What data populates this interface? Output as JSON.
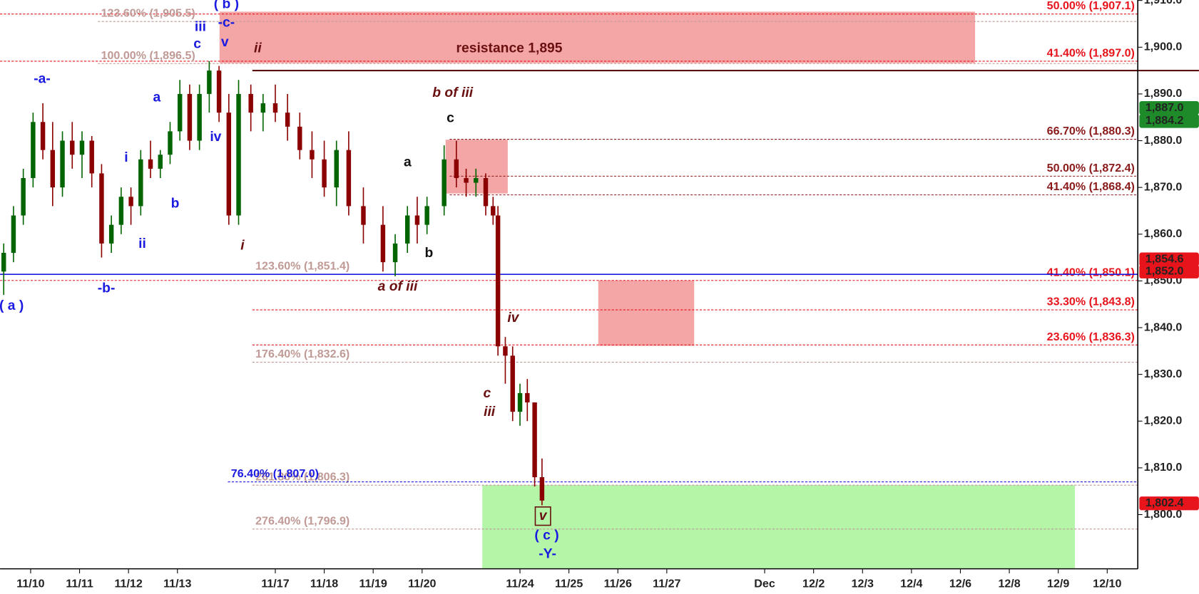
{
  "chart_data": {
    "type": "candlestick",
    "xlim": [
      -0.625,
      22.625
    ],
    "ylim": [
      1788.4,
      1910.1
    ],
    "xticks": [
      {
        "value": 0,
        "label": "11/10"
      },
      {
        "value": 1,
        "label": "11/11"
      },
      {
        "value": 2,
        "label": "11/12"
      },
      {
        "value": 3,
        "label": "11/13"
      },
      {
        "value": 5,
        "label": "11/17"
      },
      {
        "value": 6,
        "label": "11/18"
      },
      {
        "value": 7,
        "label": "11/19"
      },
      {
        "value": 8,
        "label": "11/20"
      },
      {
        "value": 10,
        "label": "11/24"
      },
      {
        "value": 11,
        "label": "11/25"
      },
      {
        "value": 12,
        "label": "11/26"
      },
      {
        "value": 13,
        "label": "11/27"
      },
      {
        "value": 15,
        "label": "Dec"
      },
      {
        "value": 16,
        "label": "12/2"
      },
      {
        "value": 17,
        "label": "12/3"
      },
      {
        "value": 18,
        "label": "12/4"
      },
      {
        "value": 19,
        "label": "12/6"
      },
      {
        "value": 20,
        "label": "12/8"
      },
      {
        "value": 21,
        "label": "12/9"
      },
      {
        "value": 22,
        "label": "12/10"
      }
    ],
    "yticks": [
      {
        "value": 1800,
        "label": "1,800.0"
      },
      {
        "value": 1810,
        "label": "1,810.0"
      },
      {
        "value": 1820,
        "label": "1,820.0"
      },
      {
        "value": 1830,
        "label": "1,830.0"
      },
      {
        "value": 1840,
        "label": "1,840.0"
      },
      {
        "value": 1850,
        "label": "1,850.0"
      },
      {
        "value": 1860,
        "label": "1,860.0"
      },
      {
        "value": 1870,
        "label": "1,870.0"
      },
      {
        "value": 1880,
        "label": "1,880.0"
      },
      {
        "value": 1890,
        "label": "1,890.0"
      },
      {
        "value": 1900,
        "label": "1,900.0"
      },
      {
        "value": 1910,
        "label": "1,910.0"
      }
    ],
    "up_color": "#006400",
    "down_color": "#8b0000",
    "x": [
      -0.55,
      -0.35,
      -0.15,
      0.05,
      0.25,
      0.45,
      0.65,
      0.85,
      1.05,
      1.25,
      1.45,
      1.65,
      1.85,
      2.05,
      2.25,
      2.45,
      2.65,
      2.85,
      3.05,
      3.25,
      3.45,
      3.65,
      3.85,
      4.05,
      4.25,
      4.5,
      4.75,
      5.0,
      5.25,
      5.5,
      5.75,
      6.0,
      6.25,
      6.5,
      6.8,
      7.2,
      7.45,
      7.7,
      7.9,
      8.1,
      8.45,
      8.7,
      8.9,
      9.1,
      9.3,
      9.45,
      9.55,
      9.7,
      9.85,
      10.0,
      10.15,
      10.3,
      10.45
    ],
    "open": [
      1852,
      1856,
      1864,
      1872,
      1884,
      1878,
      1870,
      1880,
      1877,
      1880,
      1873,
      1858,
      1862,
      1868,
      1866,
      1876,
      1874,
      1877,
      1882,
      1890,
      1880,
      1890,
      1895,
      1886,
      1864,
      1890,
      1886,
      1888,
      1886,
      1883,
      1878,
      1876,
      1870,
      1878,
      1866,
      1862,
      1854,
      1858,
      1864,
      1862,
      1866,
      1876,
      1872,
      1871,
      1872,
      1866,
      1864,
      1836,
      1834,
      1822,
      1826,
      1824,
      1808
    ],
    "high": [
      1858,
      1866,
      1874,
      1886,
      1888,
      1884,
      1882,
      1884,
      1882,
      1881,
      1875,
      1864,
      1870,
      1870,
      1878,
      1880,
      1878,
      1884,
      1893,
      1892,
      1892,
      1897,
      1896,
      1890,
      1893,
      1892,
      1890,
      1892,
      1890,
      1886,
      1882,
      1880,
      1880,
      1882,
      1870,
      1866,
      1860,
      1866,
      1868,
      1868,
      1879,
      1880,
      1874,
      1874,
      1873,
      1868,
      1866,
      1838,
      1836,
      1828,
      1829,
      1824,
      1812
    ],
    "low": [
      1847,
      1854,
      1862,
      1870,
      1876,
      1866,
      1868,
      1874,
      1872,
      1870,
      1855,
      1856,
      1860,
      1862,
      1864,
      1872,
      1872,
      1875,
      1880,
      1878,
      1878,
      1886,
      1884,
      1862,
      1862,
      1882,
      1882,
      1884,
      1880,
      1876,
      1872,
      1868,
      1866,
      1864,
      1858,
      1852,
      1851,
      1856,
      1858,
      1860,
      1864,
      1870,
      1868,
      1868,
      1864,
      1862,
      1834,
      1828,
      1820,
      1819,
      1820,
      1806,
      1802
    ],
    "close": [
      1856,
      1864,
      1872,
      1884,
      1878,
      1870,
      1880,
      1877,
      1880,
      1873,
      1858,
      1862,
      1868,
      1866,
      1876,
      1874,
      1877,
      1882,
      1890,
      1880,
      1890,
      1895,
      1886,
      1864,
      1890,
      1886,
      1888,
      1886,
      1883,
      1878,
      1876,
      1870,
      1878,
      1866,
      1862,
      1854,
      1858,
      1864,
      1862,
      1866,
      1876,
      1872,
      1871,
      1872,
      1866,
      1864,
      1836,
      1834,
      1822,
      1826,
      1824,
      1808,
      1803
    ],
    "zones": [
      {
        "x": [
          3.86,
          19.3
        ],
        "y": [
          1896.6,
          1907.6
        ],
        "color": "#f4a6a6"
      },
      {
        "x": [
          8.48,
          9.75
        ],
        "y": [
          1868.7,
          1880.2
        ],
        "color": "#f4a6a6"
      },
      {
        "x": [
          11.6,
          13.56
        ],
        "y": [
          1836.1,
          1850.1
        ],
        "color": "#f4a6a6"
      },
      {
        "x": [
          9.23,
          21.34
        ],
        "y": [
          1788.4,
          1806.3
        ],
        "color": "#b4f5a8"
      }
    ],
    "levels": [
      {
        "label": "50.00% (1,907.1)",
        "value": 1907.1,
        "color": "#e8141c"
      },
      {
        "label": "41.40% (1,897.0)",
        "value": 1897.0,
        "color": "#e8141c"
      },
      {
        "label": "66.70% (1,880.3)",
        "value": 1880.3,
        "color": "#8b1a1a"
      },
      {
        "label": "50.00% (1,872.4)",
        "value": 1872.4,
        "color": "#8b1a1a"
      },
      {
        "label": "41.40% (1,868.4)",
        "value": 1868.4,
        "color": "#8b1a1a"
      },
      {
        "label": "41.40% (1,850.1)",
        "value": 1850.1,
        "color": "#e8141c"
      },
      {
        "label": "33.30% (1,843.8)",
        "value": 1843.8,
        "color": "#e8141c"
      },
      {
        "label": "23.60% (1,836.3)",
        "value": 1836.3,
        "color": "#e8141c"
      },
      {
        "label": "123.60% (1,905.5)",
        "value": 1905.5,
        "color": "#c09a96"
      },
      {
        "label": "100.00% (1,896.5)",
        "value": 1896.5,
        "color": "#c09a96"
      },
      {
        "label": "123.60% (1,851.4)",
        "value": 1851.4,
        "color": "#c09a96"
      },
      {
        "label": "176.40% (1,832.6)",
        "value": 1832.6,
        "color": "#c09a96"
      },
      {
        "label": "261.80% (1,806.3)",
        "value": 1806.3,
        "color": "#c09a96"
      },
      {
        "label": "76.40% (1,807.0)",
        "value": 1807.0,
        "color": "#1a1ae0"
      },
      {
        "label": "276.40% (1,796.9)",
        "value": 1796.9,
        "color": "#c09a96"
      }
    ],
    "price_tags": [
      {
        "value": 1887.0,
        "label": "1,887.0",
        "color": "#1f8a2a"
      },
      {
        "value": 1884.2,
        "label": "1,884.2",
        "color": "#1f8a2a"
      },
      {
        "value": 1852.0,
        "label": "1,852.0",
        "color": "#e8141c"
      },
      {
        "value": 1854.6,
        "label": "1,854.6",
        "color": "#e8141c"
      },
      {
        "value": 1802.4,
        "label": "1,802.4",
        "color": "#e8141c"
      }
    ],
    "annotations": [
      "( b )",
      "iii",
      "-c-",
      "v",
      "c",
      "-a-",
      "a",
      "iv",
      "i",
      "b",
      "ii",
      "-b-",
      "( a )",
      "ii",
      "i",
      "resistance 1,895",
      "b of iii",
      "c",
      "a",
      "b",
      "a of iii",
      "iv",
      "c",
      "iii",
      "v",
      "( c )",
      "-Y-"
    ]
  }
}
